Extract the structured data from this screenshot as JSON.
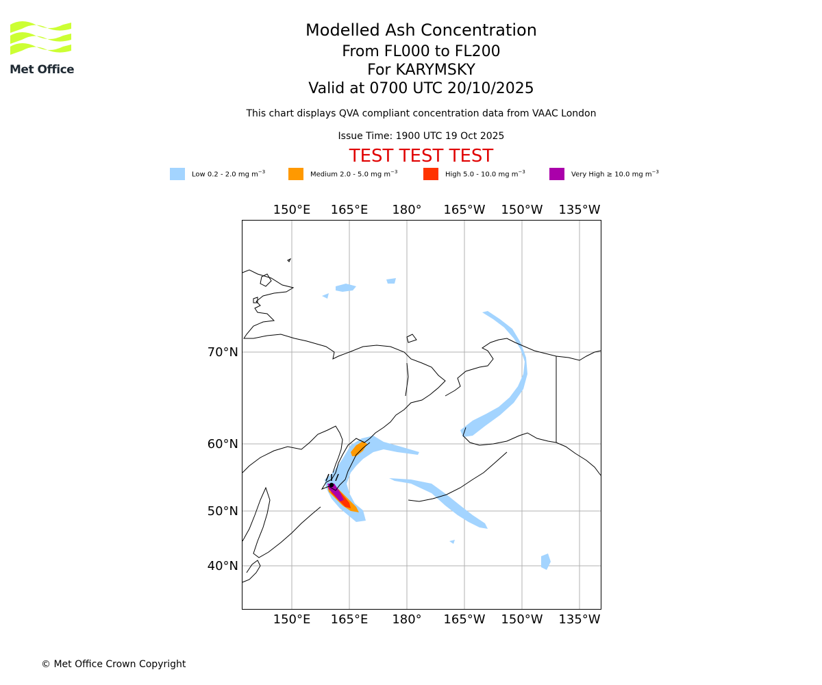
{
  "logo": {
    "text": "Met Office",
    "color": "#ccff33"
  },
  "title": {
    "line1": "Modelled Ash Concentration",
    "line2": "From FL000 to FL200",
    "line3": "For KARYMSKY",
    "line4": "Valid at 0700 UTC 20/10/2025"
  },
  "subtitle": "This chart displays QVA compliant concentration data from VAAC London",
  "issue_time": "Issue Time: 1900 UTC 19 Oct 2025",
  "test_banner": "TEST TEST TEST",
  "legend": [
    {
      "label": "Low 0.2 - 2.0 mg m",
      "color": "#a3d4ff"
    },
    {
      "label": "Medium 2.0 - 5.0 mg m",
      "color": "#ff9900"
    },
    {
      "label": "High 5.0 - 10.0 mg m",
      "color": "#ff3300"
    },
    {
      "label": "Very High ≥ 10.0 mg m",
      "color": "#aa00aa"
    }
  ],
  "legend_unit_exponent": "−3",
  "map": {
    "lon_labels": [
      "150°E",
      "165°E",
      "180°",
      "165°W",
      "150°W",
      "135°W"
    ],
    "lat_labels": [
      "70°N",
      "60°N",
      "50°N",
      "40°N"
    ],
    "volcano": "KARYMSKY"
  },
  "copyright": "© Met Office Crown Copyright"
}
